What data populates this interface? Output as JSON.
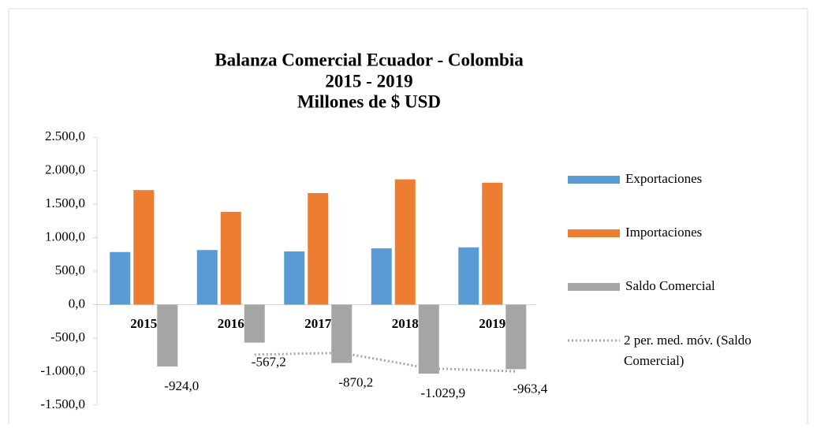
{
  "chart_data": {
    "type": "bar",
    "title": [
      "Balanza Comercial Ecuador - Colombia",
      "2015 - 2019",
      "Millones de $ USD"
    ],
    "categories": [
      "2015",
      "2016",
      "2017",
      "2018",
      "2019"
    ],
    "series": [
      {
        "name": "Exportaciones",
        "color": "#5b9bd5",
        "values": [
          785,
          815,
          795,
          840,
          855
        ]
      },
      {
        "name": "Importaciones",
        "color": "#ed7d31",
        "values": [
          1710,
          1385,
          1665,
          1870,
          1820
        ]
      },
      {
        "name": "Saldo Comercial",
        "color": "#a5a5a5",
        "values": [
          -924.0,
          -567.2,
          -870.2,
          -1029.9,
          -963.4
        ],
        "value_labels": [
          "-924,0",
          "-567,2",
          "-870,2",
          "-1.029,9",
          "-963,4"
        ]
      },
      {
        "name": "2 per. med. móv. (Saldo Comercial)",
        "type": "line",
        "color": "#a5a5a5",
        "values": [
          null,
          -745.6,
          -718.7,
          -950.05,
          -996.65
        ]
      }
    ],
    "ylim": [
      -1500,
      2500
    ],
    "yticks": [
      {
        "value": 2500,
        "label": "2.500,0"
      },
      {
        "value": 2000,
        "label": "2.000,0"
      },
      {
        "value": 1500,
        "label": "1.500,0"
      },
      {
        "value": 1000,
        "label": "1.000,0"
      },
      {
        "value": 500,
        "label": "500,0"
      },
      {
        "value": 0,
        "label": "0,0"
      },
      {
        "value": -500,
        "label": "-500,0"
      },
      {
        "value": -1000,
        "label": "-1.000,0"
      },
      {
        "value": -1500,
        "label": "-1.500,0"
      }
    ],
    "legend": "right"
  }
}
